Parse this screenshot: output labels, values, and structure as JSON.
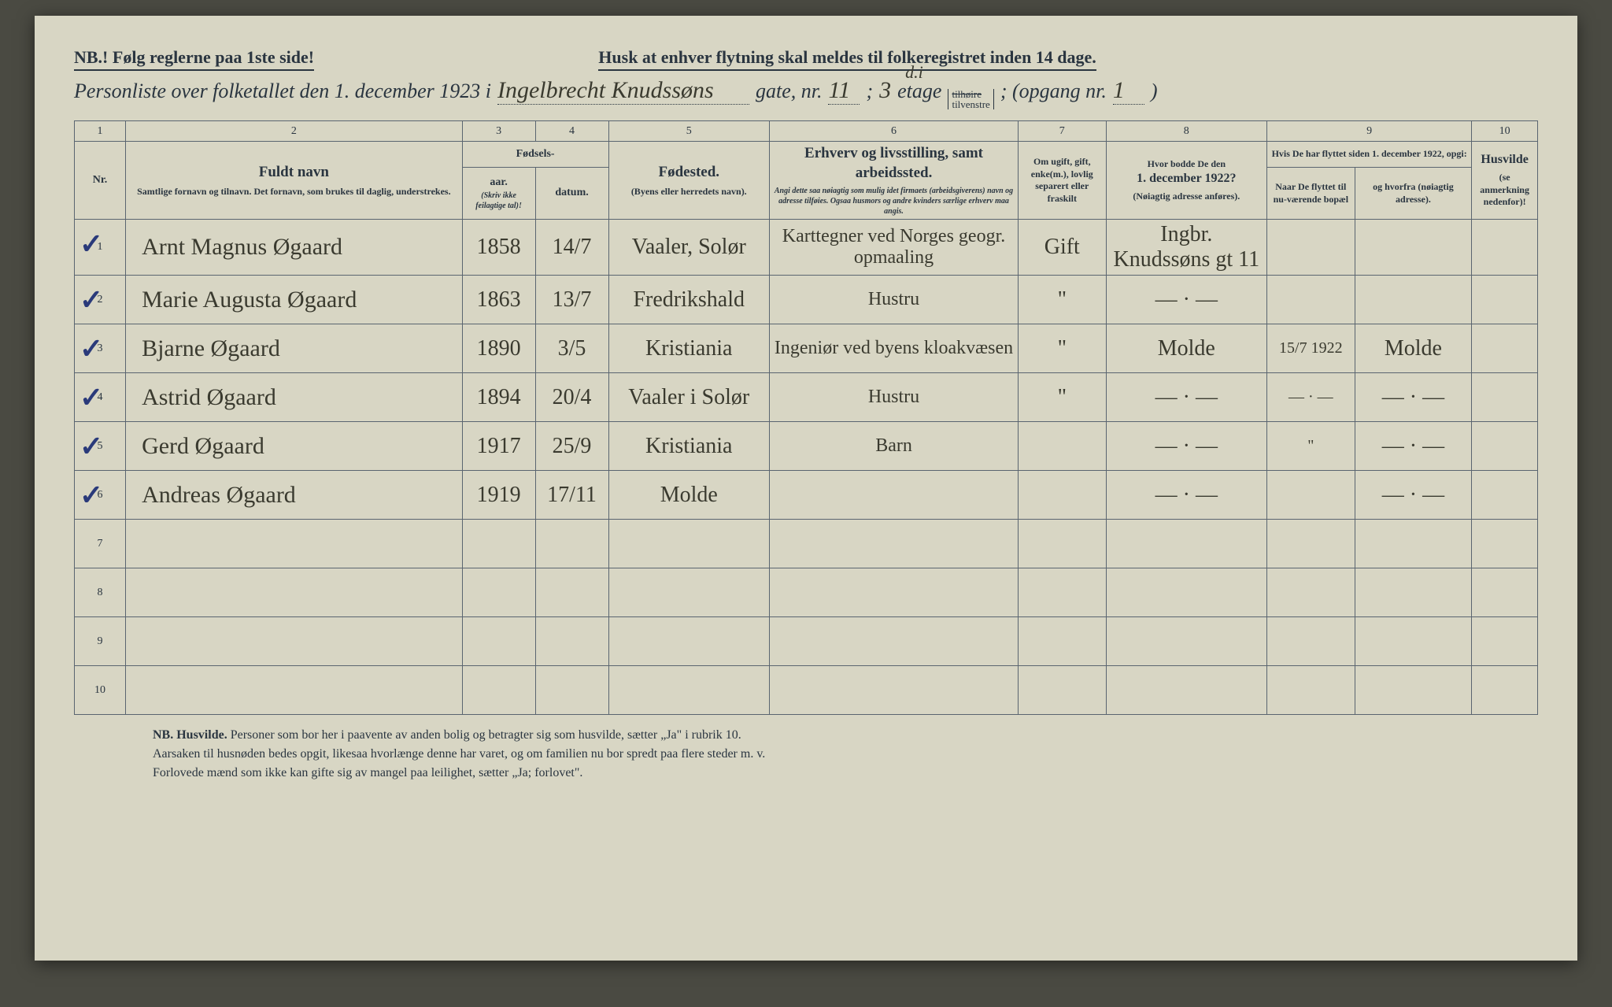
{
  "header": {
    "nb_line": "NB.! Følg reglerne paa 1ste side!",
    "reminder": "Husk at enhver flytning skal meldes til folkeregistret inden 14 dage.",
    "title_prefix": "Personliste over folketallet den 1. december 1923 i",
    "street_hw": "Ingelbrecht Knudssøns",
    "gate_label": "gate, nr.",
    "gate_nr": "11",
    "semicolon1": ";",
    "etage_nr": "3",
    "etage_annot": "d.i",
    "etage_label": "etage",
    "etage_opt1": "tilhøire",
    "etage_opt2": "tilvenstre",
    "opgang_label": "; (opgang nr.",
    "opgang_nr": "1",
    "close_paren": ")"
  },
  "columns": {
    "nums": [
      "1",
      "2",
      "3",
      "4",
      "5",
      "6",
      "7",
      "8",
      "9",
      "10"
    ],
    "c1": "Nr.",
    "c2_big": "Fuldt navn",
    "c2_small": "Samtlige fornavn og tilnavn.  Det fornavn, som brukes til daglig, understrekes.",
    "c34_top": "Fødsels-",
    "c3": "aar.",
    "c4": "datum.",
    "c34_tiny": "(Skriv ikke feilagtige tal)!",
    "c5_big": "Fødested.",
    "c5_small": "(Byens eller herredets navn).",
    "c6_big": "Erhverv og livsstilling, samt arbeidssted.",
    "c6_tiny": "Angi dette saa nøiagtig som mulig idet firmaets (arbeidsgiverens) navn og adresse tilføies. Ogsaa husmors og andre kvinders særlige erhverv maa angis.",
    "c7": "Om ugift, gift, enke(m.), lovlig separert eller fraskilt",
    "c8_top": "Hvor bodde De den",
    "c8_big": "1. december 1922?",
    "c8_small": "(Nøiagtig adresse anføres).",
    "c9_top": "Hvis De har flyttet siden 1. december 1922, opgi:",
    "c9a": "Naar De flyttet til nu-værende bopæl",
    "c9b": "og hvorfra (nøiagtig adresse).",
    "c10_big": "Husvilde",
    "c10_small": "(se anmerkning nedenfor)!"
  },
  "rows": [
    {
      "nr": "1",
      "check": "✓",
      "name": "Arnt Magnus Øgaard",
      "year": "1858",
      "date": "14/7",
      "birthplace": "Vaaler, Solør",
      "occupation": "Karttegner ved Norges geogr. opmaaling",
      "status": "Gift",
      "addr1922": "Ingbr. Knudssøns gt 11",
      "moved_when": "",
      "moved_from": "",
      "husvilde": ""
    },
    {
      "nr": "2",
      "check": "✓",
      "name": "Marie Augusta Øgaard",
      "year": "1863",
      "date": "13/7",
      "birthplace": "Fredrikshald",
      "occupation": "Hustru",
      "status": "\"",
      "addr1922": "— · —",
      "moved_when": "",
      "moved_from": "",
      "husvilde": ""
    },
    {
      "nr": "3",
      "check": "✓",
      "name": "Bjarne Øgaard",
      "year": "1890",
      "date": "3/5",
      "birthplace": "Kristiania",
      "occupation": "Ingeniør ved byens kloakvæsen",
      "status": "\"",
      "addr1922": "Molde",
      "moved_when": "15/7 1922",
      "moved_from": "Molde",
      "husvilde": ""
    },
    {
      "nr": "4",
      "check": "✓",
      "name": "Astrid Øgaard",
      "year": "1894",
      "date": "20/4",
      "birthplace": "Vaaler i Solør",
      "occupation": "Hustru",
      "status": "\"",
      "addr1922": "— · —",
      "moved_when": "— · —",
      "moved_from": "— · —",
      "husvilde": ""
    },
    {
      "nr": "5",
      "check": "✓",
      "name": "Gerd Øgaard",
      "year": "1917",
      "date": "25/9",
      "birthplace": "Kristiania",
      "occupation": "Barn",
      "status": "",
      "addr1922": "— · —",
      "moved_when": "\"",
      "moved_from": "— · —",
      "husvilde": ""
    },
    {
      "nr": "6",
      "check": "✓",
      "name": "Andreas Øgaard",
      "year": "1919",
      "date": "17/11",
      "birthplace": "Molde",
      "occupation": "",
      "status": "",
      "addr1922": "— · —",
      "moved_when": "",
      "moved_from": "— · —",
      "husvilde": ""
    }
  ],
  "empty_rows": [
    "7",
    "8",
    "9",
    "10"
  ],
  "footer": {
    "line1_nb": "NB. Husvilde.",
    "line1": "  Personer som bor her i paavente av anden bolig og betragter sig som husvilde, sætter „Ja\" i rubrik 10.",
    "line2": "Aarsaken til husnøden bedes opgit, likesaa hvorlænge denne har varet, og om familien nu bor spredt paa flere steder m. v.",
    "line3": "Forlovede mænd som ikke kan gifte sig av mangel paa leilighet, sætter „Ja; forlovet\"."
  },
  "layout": {
    "col_widths_pct": [
      3.5,
      23,
      5,
      5,
      11,
      17,
      6,
      11,
      6,
      8,
      4.5
    ]
  },
  "colors": {
    "page_bg": "#d8d6c4",
    "outer_bg": "#4a4a42",
    "ink": "#2a3540",
    "handwriting": "#3a3a2f",
    "checkmark": "#2a3a7a",
    "border": "#5a6570"
  }
}
